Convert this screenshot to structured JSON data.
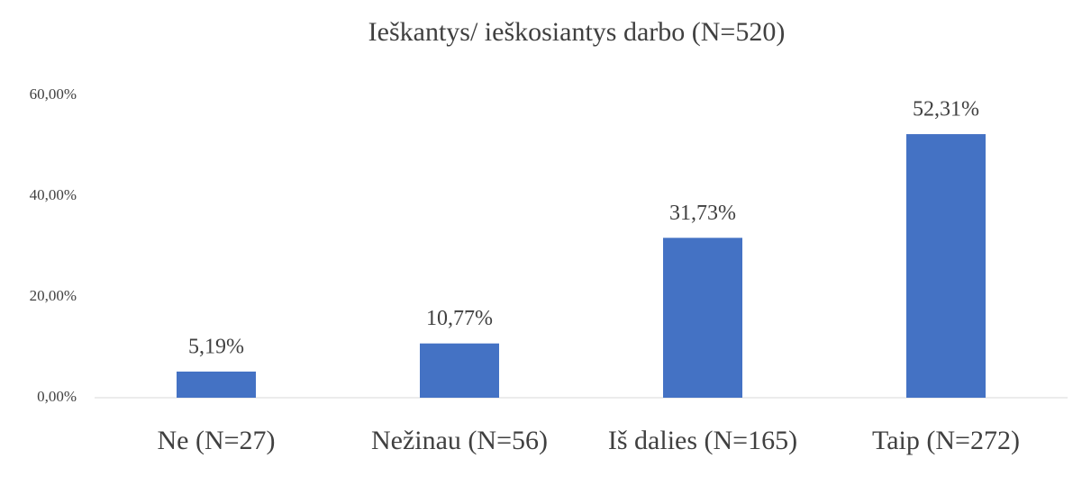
{
  "chart_data": {
    "type": "bar",
    "title": "Ieškantys/ ieškosiantys darbo (N=520)",
    "categories": [
      "Ne (N=27)",
      "Nežinau (N=56)",
      "Iš dalies (N=165)",
      "Taip (N=272)"
    ],
    "values": [
      5.19,
      10.77,
      31.73,
      52.31
    ],
    "value_labels": [
      "5,19%",
      "10,77%",
      "31,73%",
      "52,31%"
    ],
    "color": "#4472c4",
    "ylim": [
      0,
      60
    ],
    "yticks": [
      {
        "value": 0,
        "label": "0,00%"
      },
      {
        "value": 20,
        "label": "20,00%"
      },
      {
        "value": 40,
        "label": "40,00%"
      },
      {
        "value": 60,
        "label": "60,00%"
      }
    ],
    "grid": false
  }
}
